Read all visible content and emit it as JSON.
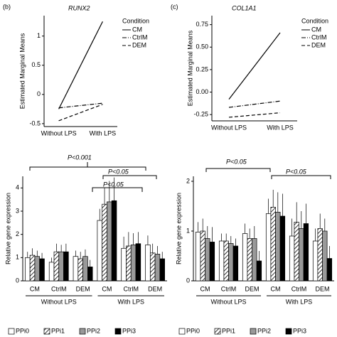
{
  "chart_data": [
    {
      "type": "line",
      "panel": "(b)",
      "title": "RUNX2",
      "ylabel": "Estimated Marginal Means",
      "legend_title": "Condition",
      "categories": [
        "Without LPS",
        "With LPS"
      ],
      "series": [
        {
          "name": "CM",
          "color": "#000000",
          "dash": "solid",
          "values": [
            -0.25,
            1.25
          ]
        },
        {
          "name": "CtrlM",
          "color": "#000000",
          "dash": "dashdot",
          "values": [
            -0.23,
            -0.15
          ]
        },
        {
          "name": "DEM",
          "color": "#000000",
          "dash": "dashed",
          "values": [
            -0.45,
            -0.17
          ]
        }
      ],
      "ylim": [
        -0.55,
        1.35
      ],
      "yticks": [
        -0.5,
        0,
        0.5,
        1
      ]
    },
    {
      "type": "line",
      "panel": "(c)",
      "title": "COL1A1",
      "ylabel": "Estimated Marginal Means",
      "legend_title": "Condition",
      "categories": [
        "Without LPS",
        "With LPS"
      ],
      "series": [
        {
          "name": "CM",
          "color": "#000000",
          "dash": "solid",
          "values": [
            -0.08,
            0.66
          ]
        },
        {
          "name": "CtrlM",
          "color": "#000000",
          "dash": "dashdot",
          "values": [
            -0.17,
            -0.1
          ]
        },
        {
          "name": "DEM",
          "color": "#000000",
          "dash": "dashed",
          "values": [
            -0.28,
            -0.23
          ]
        }
      ],
      "ylim": [
        -0.32,
        0.85
      ],
      "yticks": [
        {
          "value": -0.25,
          "label": "-0.25"
        },
        {
          "value": 0,
          "label": "0.00"
        },
        {
          "value": 0.25,
          "label": "0.25"
        },
        {
          "value": 0.5,
          "label": "0.50"
        },
        {
          "value": 0.75,
          "label": "0.75"
        }
      ]
    },
    {
      "type": "bar",
      "ylabel": "Relative gene expression",
      "categories": [
        "CM",
        "CtrlM",
        "DEM",
        "CM",
        "CtrlM",
        "DEM"
      ],
      "groups": [
        "Without LPS",
        "With LPS"
      ],
      "series": [
        {
          "name": "PPi0",
          "color": "#ffffff",
          "values": [
            1.0,
            0.8,
            1.05,
            2.6,
            1.4,
            1.55
          ],
          "errors": [
            0.25,
            0.2,
            0.25,
            0.5,
            0.5,
            0.4
          ]
        },
        {
          "name": "PPi1",
          "color": "#ffffff",
          "pattern": "hatch",
          "values": [
            1.1,
            1.25,
            0.95,
            3.3,
            1.5,
            1.2
          ],
          "errors": [
            0.3,
            0.35,
            0.3,
            0.7,
            0.6,
            0.4
          ]
        },
        {
          "name": "PPi2",
          "color": "#999999",
          "values": [
            1.05,
            1.25,
            1.05,
            3.4,
            1.55,
            1.15
          ],
          "errors": [
            0.25,
            0.3,
            0.3,
            0.9,
            0.5,
            0.35
          ]
        },
        {
          "name": "PPi3",
          "color": "#000000",
          "values": [
            0.95,
            1.25,
            0.6,
            3.45,
            1.6,
            0.95
          ],
          "errors": [
            0.25,
            0.35,
            0.3,
            1.0,
            0.5,
            0.3
          ]
        }
      ],
      "ylim": [
        0,
        4.5
      ],
      "yticks": [
        0,
        1,
        2,
        3,
        4
      ],
      "annotations": [
        "P<0.001",
        "P<0.05",
        "P<0.05"
      ]
    },
    {
      "type": "bar",
      "ylabel": "Relative gene expression",
      "categories": [
        "CM",
        "CtrlM",
        "DEM",
        "CM",
        "CtrlM",
        "DEM"
      ],
      "groups": [
        "Without LPS",
        "With LPS"
      ],
      "series": [
        {
          "name": "PPi0",
          "color": "#ffffff",
          "values": [
            0.98,
            0.8,
            0.95,
            1.35,
            0.9,
            0.8
          ],
          "errors": [
            0.2,
            0.15,
            0.2,
            0.3,
            0.35,
            0.25
          ]
        },
        {
          "name": "PPi1",
          "color": "#ffffff",
          "pattern": "hatch",
          "values": [
            1.0,
            0.8,
            0.85,
            1.48,
            1.18,
            1.05
          ],
          "errors": [
            0.25,
            0.15,
            0.2,
            0.35,
            0.4,
            0.3
          ]
        },
        {
          "name": "PPi2",
          "color": "#999999",
          "values": [
            0.85,
            0.75,
            0.85,
            1.38,
            1.05,
            1.0
          ],
          "errors": [
            0.25,
            0.15,
            0.25,
            0.4,
            0.35,
            0.25
          ]
        },
        {
          "name": "PPi3",
          "color": "#000000",
          "values": [
            0.78,
            0.7,
            0.4,
            1.3,
            1.15,
            0.45
          ],
          "errors": [
            0.3,
            0.15,
            0.2,
            0.45,
            0.4,
            0.25
          ]
        }
      ],
      "ylim": [
        0,
        2.1
      ],
      "yticks": [
        0,
        1,
        2
      ],
      "annotations": [
        "P<0.05",
        "P<0.05"
      ]
    }
  ]
}
